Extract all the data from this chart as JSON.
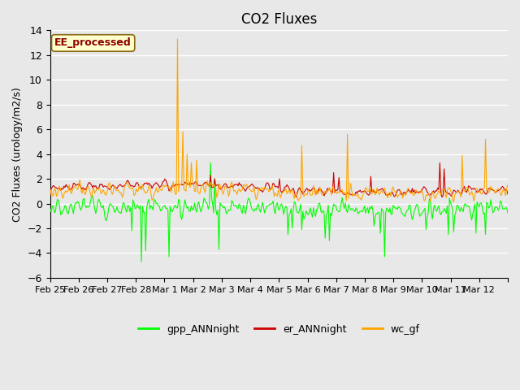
{
  "title": "CO2 Fluxes",
  "ylabel": "CO2 Fluxes (urology/m2/s)",
  "ylim": [
    -6,
    14
  ],
  "yticks": [
    -6,
    -4,
    -2,
    0,
    2,
    4,
    6,
    8,
    10,
    12,
    14
  ],
  "background_color": "#e8e8e8",
  "plot_bg_color": "#e8e8e8",
  "grid_color": "#ffffff",
  "colors": {
    "gpp_ANNnight": "#00ff00",
    "er_ANNnight": "#cc0000",
    "wc_gf": "#ffa500"
  },
  "annotation_text": "EE_processed",
  "annotation_color": "#8b0000",
  "annotation_bg": "#ffffcc",
  "annotation_border": "#8b6914",
  "n_points": 432,
  "xtick_positions": [
    0,
    1,
    2,
    3,
    4,
    5,
    6,
    7,
    8,
    9,
    10,
    11,
    12,
    13,
    14,
    15,
    16
  ],
  "xtick_labels": [
    "Feb 25",
    "Feb 26",
    "Feb 27",
    "Feb 28",
    "Mar 1",
    "Mar 2",
    "Mar 3",
    "Mar 4",
    "Mar 5",
    "Mar 6",
    "Mar 7",
    "Mar 8",
    "Mar 9",
    "Mar 10",
    "Mar 11",
    "Mar 12",
    ""
  ],
  "legend_labels": [
    "gpp_ANNnight",
    "er_ANNnight",
    "wc_gf"
  ],
  "legend_colors": [
    "#00ff00",
    "#cc0000",
    "#ffa500"
  ]
}
